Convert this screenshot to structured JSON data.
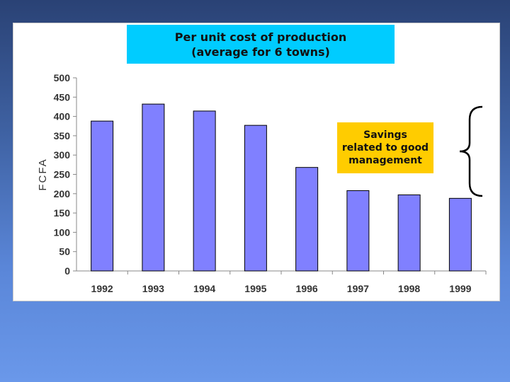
{
  "title_line1": "Per unit cost of production",
  "title_line2": "(average for 6 towns)",
  "annotation": {
    "line1": "Savings",
    "line2": "related to good",
    "line3": "management"
  },
  "colors": {
    "bar": "#8080ff",
    "bar_stroke": "#000000",
    "title_bg": "#00ccff",
    "annotation_bg": "#ffcc00"
  },
  "chart_data": {
    "type": "bar",
    "title": "Per unit cost of production (average for 6 towns)",
    "categories": [
      "1992",
      "1993",
      "1994",
      "1995",
      "1996",
      "1997",
      "1998",
      "1999"
    ],
    "values": [
      388,
      432,
      414,
      377,
      268,
      208,
      197,
      188
    ],
    "xlabel": "",
    "ylabel": "FCFA",
    "ylim": [
      0,
      500
    ],
    "yticks": [
      0,
      50,
      100,
      150,
      200,
      250,
      300,
      350,
      400,
      450,
      500
    ],
    "grid": false,
    "legend": "none"
  }
}
